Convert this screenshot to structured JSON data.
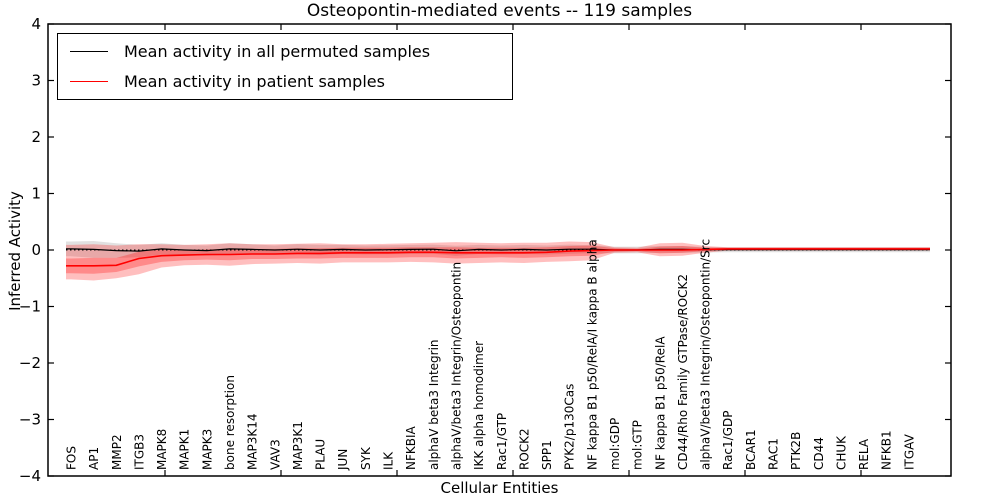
{
  "title": "Osteopontin-mediated events -- 119 samples",
  "xlabel": "Cellular Entities",
  "ylabel": "Inferred Activity",
  "legend": {
    "items": [
      {
        "label": "Mean activity in all permuted samples",
        "color": "#000000"
      },
      {
        "label": "Mean activity in patient samples",
        "color": "#ff0000"
      }
    ]
  },
  "colors": {
    "permuted_line": "#000000",
    "patient_line": "#ff0000",
    "permuted_band": "rgba(90,90,90,0.18)",
    "patient_band_outer": "rgba(255,0,0,0.25)",
    "patient_band_inner": "rgba(255,0,0,0.28)",
    "axis": "#000000",
    "background": "#ffffff"
  },
  "chart_data": {
    "type": "line",
    "title": "Osteopontin-mediated events -- 119 samples",
    "xlabel": "Cellular Entities",
    "ylabel": "Inferred Activity",
    "ylim": [
      -4,
      4
    ],
    "ytick_labels": [
      "4",
      "3",
      "2",
      "1",
      "0",
      "−1",
      "−2",
      "−3",
      "−4"
    ],
    "ytick_values": [
      4,
      3,
      2,
      1,
      0,
      -1,
      -2,
      -3,
      -4
    ],
    "grid": false,
    "legend_position": "upper left",
    "zero_reference_line": {
      "y": 0,
      "style": "dotted",
      "color": "#000000"
    },
    "categories": [
      "FOS",
      "AP1",
      "MMP2",
      "ITGB3",
      "MAPK8",
      "MAPK1",
      "MAPK3",
      "bone resorption",
      "MAP3K14",
      "VAV3",
      "MAP3K1",
      "PLAU",
      "JUN",
      "SYK",
      "ILK",
      "NFKBIA",
      "alphaV beta3 Integrin",
      "alphaV/beta3 Integrin/Osteopontin",
      "IKK alpha homodimer",
      "Rac1/GTP",
      "ROCK2",
      "SPP1",
      "PYK2/p130Cas",
      "NF kappa B1 p50/RelA/I kappa B alpha",
      "mol:GDP",
      "mol:GTP",
      "NF kappa B1 p50/RelA",
      "CD44/Rho Family GTPase/ROCK2",
      "alphaV/beta3 Integrin/Osteopontin/Src",
      "Rac1/GDP",
      "BCAR1",
      "RAC1",
      "PTK2B",
      "CD44",
      "CHUK",
      "RELA",
      "NFKB1",
      "ITGAV"
    ],
    "series": [
      {
        "name": "Mean activity in all permuted samples",
        "color": "#000000",
        "values": [
          0.02,
          0.01,
          -0.01,
          -0.02,
          0.02,
          0.0,
          -0.01,
          0.02,
          0.01,
          0.0,
          0.015,
          0.0,
          0.01,
          0.0,
          0.005,
          0.01,
          0.015,
          -0.015,
          0.01,
          0.0,
          0.01,
          0.0,
          0.015,
          0.015,
          0.0,
          0.0,
          0.01,
          0.01,
          0.005,
          0.005,
          0.005,
          0.005,
          0.005,
          0.005,
          0.005,
          0.005,
          0.005,
          0.005
        ],
        "band_half_width": [
          0.13,
          0.15,
          0.13,
          0.11,
          0.1,
          0.09,
          0.09,
          0.1,
          0.09,
          0.08,
          0.09,
          0.09,
          0.08,
          0.08,
          0.08,
          0.08,
          0.08,
          0.09,
          0.08,
          0.08,
          0.08,
          0.08,
          0.08,
          0.07,
          0.06,
          0.06,
          0.06,
          0.06,
          0.05,
          0.045,
          0.045,
          0.045,
          0.045,
          0.045,
          0.045,
          0.045,
          0.045,
          0.045
        ]
      },
      {
        "name": "Mean activity in patient samples",
        "color": "#ff0000",
        "values": [
          -0.28,
          -0.28,
          -0.27,
          -0.15,
          -0.1,
          -0.09,
          -0.08,
          -0.08,
          -0.07,
          -0.07,
          -0.06,
          -0.06,
          -0.05,
          -0.05,
          -0.05,
          -0.04,
          -0.04,
          -0.05,
          -0.05,
          -0.05,
          -0.05,
          -0.04,
          -0.02,
          -0.01,
          0.0,
          0.0,
          0.0,
          0.0,
          0.01,
          0.02,
          0.02,
          0.02,
          0.02,
          0.02,
          0.02,
          0.02,
          0.02,
          0.02
        ],
        "band_outer_lo": [
          -0.52,
          -0.54,
          -0.5,
          -0.43,
          -0.31,
          -0.27,
          -0.26,
          -0.28,
          -0.25,
          -0.24,
          -0.23,
          -0.24,
          -0.22,
          -0.22,
          -0.22,
          -0.21,
          -0.22,
          -0.24,
          -0.23,
          -0.22,
          -0.23,
          -0.21,
          -0.2,
          -0.18,
          -0.05,
          -0.04,
          -0.11,
          -0.1,
          -0.05,
          -0.01,
          -0.01,
          -0.01,
          -0.01,
          -0.01,
          -0.01,
          -0.01,
          -0.01,
          -0.01
        ],
        "band_outer_hi": [
          0.09,
          0.1,
          0.08,
          0.1,
          0.1,
          0.09,
          0.1,
          0.12,
          0.1,
          0.1,
          0.11,
          0.12,
          0.1,
          0.1,
          0.11,
          0.12,
          0.13,
          0.14,
          0.13,
          0.12,
          0.13,
          0.13,
          0.15,
          0.14,
          0.05,
          0.04,
          0.12,
          0.13,
          0.07,
          0.05,
          0.05,
          0.05,
          0.05,
          0.05,
          0.05,
          0.05,
          0.05,
          0.05
        ],
        "band_inner_lo": [
          -0.41,
          -0.42,
          -0.39,
          -0.29,
          -0.21,
          -0.18,
          -0.17,
          -0.18,
          -0.16,
          -0.16,
          -0.15,
          -0.15,
          -0.14,
          -0.14,
          -0.14,
          -0.13,
          -0.13,
          -0.15,
          -0.14,
          -0.13,
          -0.14,
          -0.13,
          -0.11,
          -0.1,
          -0.03,
          -0.02,
          -0.06,
          -0.05,
          -0.02,
          0.0,
          0.0,
          0.0,
          0.0,
          0.0,
          0.0,
          0.0,
          0.0,
          0.0
        ],
        "band_inner_hi": [
          -0.15,
          -0.14,
          -0.14,
          -0.03,
          0.01,
          0.0,
          0.01,
          0.02,
          0.02,
          0.02,
          0.03,
          0.03,
          0.04,
          0.04,
          0.04,
          0.05,
          0.05,
          0.05,
          0.04,
          0.04,
          0.04,
          0.05,
          0.07,
          0.08,
          0.03,
          0.02,
          0.06,
          0.07,
          0.04,
          0.04,
          0.04,
          0.04,
          0.04,
          0.04,
          0.04,
          0.04,
          0.04,
          0.04
        ]
      }
    ]
  }
}
